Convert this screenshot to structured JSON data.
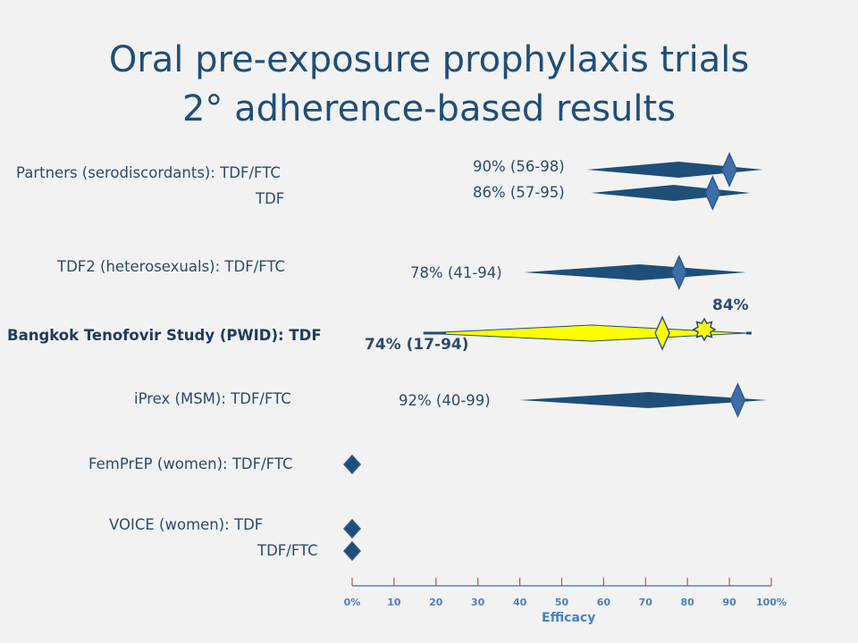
{
  "title_line1": "Oral pre-exposure prophylaxis trials",
  "title_line2": "2° adherence-based results",
  "chart_data": {
    "type": "forest",
    "xlabel": "Efficacy",
    "x_ticks": [
      "0%",
      "10",
      "20",
      "30",
      "40",
      "50",
      "60",
      "70",
      "80",
      "90",
      "100%"
    ],
    "xlim": [
      0,
      100
    ],
    "rows": [
      {
        "label": "Partners (serodiscordants): TDF/FTC",
        "estimate": 90,
        "ci": [
          56,
          98
        ],
        "text": "90% (56-98)"
      },
      {
        "label": "TDF",
        "estimate": 86,
        "ci": [
          57,
          95
        ],
        "text": "86% (57-95)"
      },
      {
        "label": "TDF2 (heterosexuals): TDF/FTC",
        "estimate": 78,
        "ci": [
          41,
          94
        ],
        "text": "78% (41-94)"
      },
      {
        "label": "Bangkok Tenofovir Study (PWID): TDF",
        "estimate": 74,
        "ci": [
          17,
          94
        ],
        "text": "74% (17-94)",
        "second_estimate": 84,
        "second_text": "84%",
        "highlight_color": "#ffff00"
      },
      {
        "label": "iPrex (MSM): TDF/FTC",
        "estimate": 92,
        "ci": [
          40,
          99
        ],
        "text": "92% (40-99)"
      },
      {
        "label": "FemPrEP (women): TDF/FTC",
        "estimate": 0
      },
      {
        "label": "VOICE (women): TDF",
        "estimate": 0
      },
      {
        "label": "TDF/FTC",
        "estimate": 0
      }
    ],
    "colors": {
      "bar": "#1f4e79",
      "marker": "#3d6ea8",
      "highlight": "#ffff00",
      "tick": "#c0504d"
    }
  }
}
